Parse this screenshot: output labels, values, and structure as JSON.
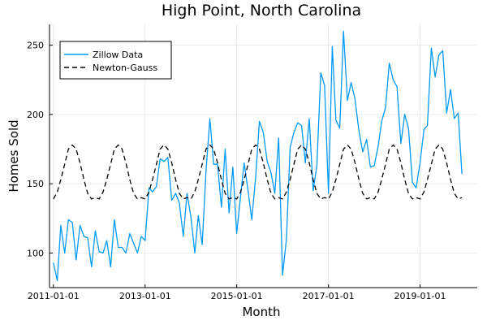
{
  "chart_data": {
    "type": "line",
    "title": "High Point, North Carolina",
    "xlabel": "Month",
    "ylabel": "Homes Sold",
    "x_start": "2011-01-01",
    "x_end": "2020-01-01",
    "xlim": [
      "2010-12-01",
      "2020-04-01"
    ],
    "ylim": [
      75,
      265
    ],
    "x_ticks": [
      "2011-01-01",
      "2013-01-01",
      "2015-01-01",
      "2017-01-01",
      "2019-01-01"
    ],
    "y_ticks": [
      100,
      150,
      200,
      250
    ],
    "grid": true,
    "legend_position": "top-left",
    "series": [
      {
        "name": "Zillow Data",
        "color": "#009af9",
        "style": "solid",
        "values": [
          93,
          80,
          120,
          100,
          124,
          122,
          95,
          120,
          112,
          111,
          90,
          116,
          101,
          100,
          109,
          90,
          124,
          104,
          104,
          100,
          114,
          107,
          100,
          112,
          109,
          147,
          144,
          148,
          168,
          166,
          169,
          138,
          143,
          136,
          112,
          143,
          126,
          100,
          127,
          106,
          159,
          197,
          164,
          164,
          133,
          175,
          129,
          162,
          114,
          141,
          165,
          145,
          124,
          155,
          195,
          187,
          166,
          158,
          143,
          183,
          84,
          110,
          176,
          187,
          194,
          192,
          165,
          197,
          145,
          163,
          230,
          221,
          143,
          249,
          196,
          190,
          260,
          210,
          223,
          211,
          188,
          173,
          182,
          162,
          163,
          177,
          195,
          205,
          237,
          225,
          220,
          179,
          200,
          190,
          151,
          147,
          165,
          189,
          192,
          248,
          227,
          243,
          246,
          201,
          218,
          197,
          201,
          157
        ]
      },
      {
        "name": "Newton-Gauss",
        "color": "#000000",
        "style": "dashed",
        "values": [
          139,
          144,
          153,
          164,
          175,
          178,
          175,
          165,
          153,
          143,
          139,
          140,
          139,
          144,
          153,
          164,
          175,
          178,
          175,
          165,
          153,
          143,
          139,
          140,
          139,
          144,
          153,
          164,
          175,
          178,
          175,
          165,
          153,
          143,
          139,
          140,
          139,
          144,
          153,
          164,
          175,
          178,
          175,
          165,
          153,
          143,
          139,
          140,
          139,
          144,
          153,
          164,
          175,
          178,
          175,
          165,
          153,
          143,
          139,
          140,
          139,
          144,
          153,
          164,
          175,
          178,
          175,
          165,
          153,
          143,
          139,
          140,
          139,
          144,
          153,
          164,
          175,
          178,
          175,
          165,
          153,
          143,
          139,
          140,
          139,
          144,
          153,
          164,
          175,
          178,
          175,
          165,
          153,
          143,
          139,
          140,
          139,
          144,
          153,
          164,
          175,
          178,
          175,
          165,
          153,
          143,
          139,
          140
        ]
      }
    ]
  }
}
